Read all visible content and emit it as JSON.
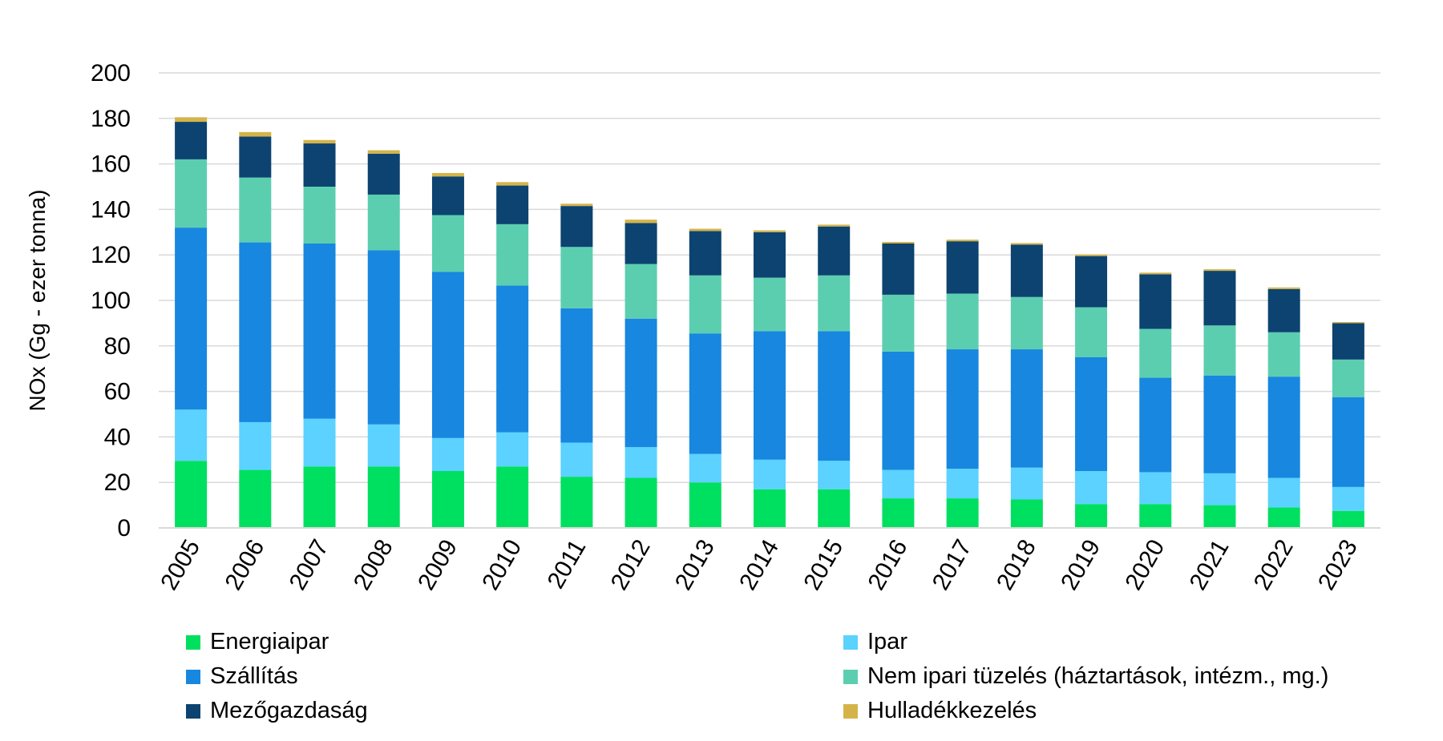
{
  "chart_data": {
    "type": "bar",
    "stacked": true,
    "categories": [
      "2005",
      "2006",
      "2007",
      "2008",
      "2009",
      "2010",
      "2011",
      "2012",
      "2013",
      "2014",
      "2015",
      "2016",
      "2017",
      "2018",
      "2019",
      "2020",
      "2021",
      "2022",
      "2023"
    ],
    "ylabel": "NOx (Gg - ezer tonna)",
    "ylim": [
      0,
      200
    ],
    "yticks": [
      0,
      20,
      40,
      60,
      80,
      100,
      120,
      140,
      160,
      180,
      200
    ],
    "grid": true,
    "legend_position": "bottom",
    "series": [
      {
        "name": "Energiaipar",
        "color": "#00e060",
        "values": [
          29.5,
          25.5,
          27,
          27,
          25,
          27,
          22.5,
          22,
          20,
          17,
          17,
          13,
          13,
          12.5,
          10.5,
          10.5,
          10,
          9,
          7.5
        ]
      },
      {
        "name": "Ipar",
        "color": "#5bd2ff",
        "values": [
          22.5,
          21,
          21,
          18.5,
          14.5,
          15,
          15,
          13.5,
          12.5,
          13,
          12.5,
          12.5,
          13,
          14,
          14.5,
          14,
          14,
          13,
          10.5
        ]
      },
      {
        "name": "Szállítás",
        "color": "#1787e0",
        "values": [
          80,
          79,
          77,
          76.5,
          73,
          64.5,
          59,
          56.5,
          53,
          56.5,
          57,
          52,
          52.5,
          52,
          50,
          41.5,
          43,
          44.5,
          39.5
        ]
      },
      {
        "name": "Nem ipari tüzelés (háztartások, intézm., mg.)",
        "color": "#5cceb0",
        "values": [
          30,
          28.5,
          25,
          24.5,
          25,
          27,
          27,
          24,
          25.5,
          23.5,
          24.5,
          25,
          24.5,
          23,
          22,
          21.5,
          22,
          19.5,
          16.5
        ]
      },
      {
        "name": "Mezőgazdaság",
        "color": "#0c4370",
        "values": [
          16.5,
          18,
          19,
          18,
          17,
          17,
          18,
          18,
          19.5,
          20,
          21.5,
          22.5,
          23,
          23,
          22.5,
          24,
          24,
          19,
          16
        ]
      },
      {
        "name": "Hulladékkezelés",
        "color": "#d4b44a",
        "values": [
          2,
          2,
          1.5,
          1.5,
          1.5,
          1.5,
          1,
          1.5,
          1,
          0.8,
          0.8,
          0.7,
          0.7,
          0.7,
          0.7,
          0.7,
          0.7,
          0.7,
          0.5
        ]
      }
    ]
  }
}
